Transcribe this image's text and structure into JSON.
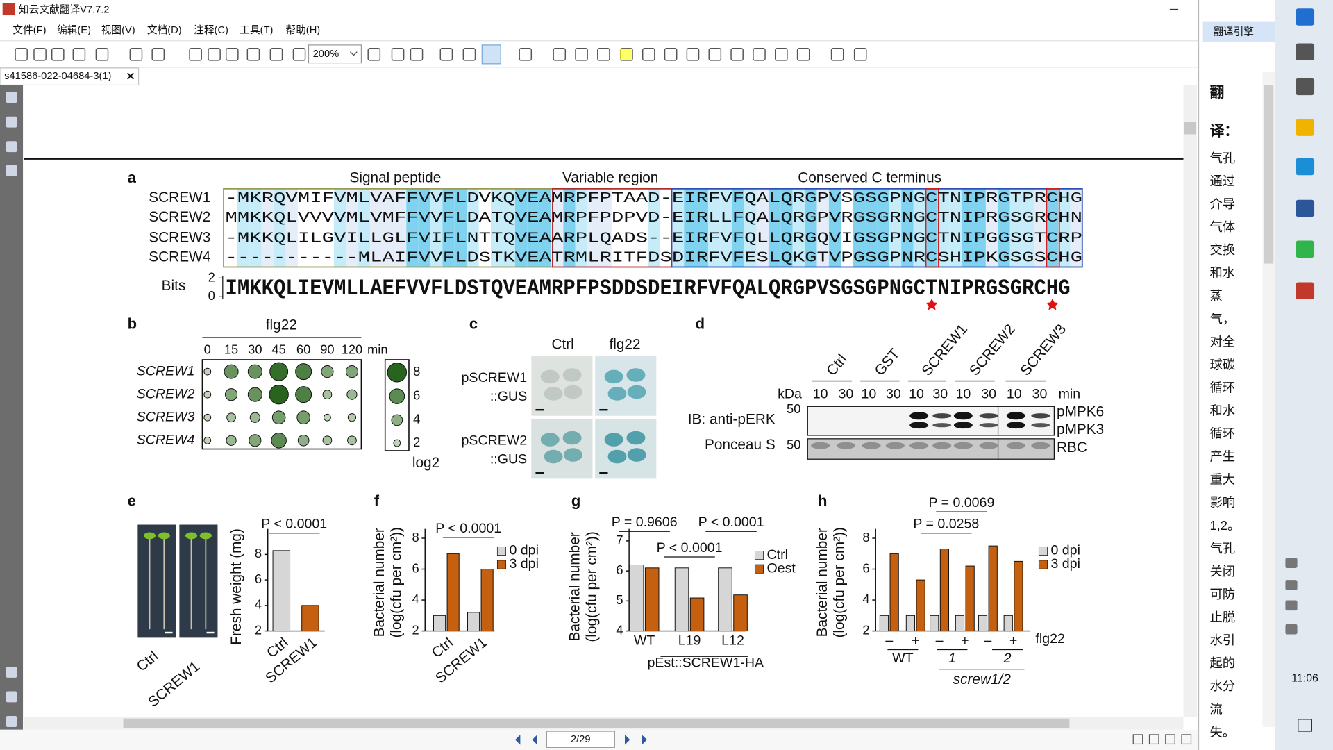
{
  "app": {
    "title": "知云文献翻译V7.7.2",
    "menu": [
      "文件(F)",
      "编辑(E)",
      "视图(V)",
      "文档(D)",
      "注释(C)",
      "工具(T)",
      "帮助(H)"
    ],
    "zoom": "200%",
    "tab": "s41586-022-04684-3(1)",
    "page": "2/29",
    "engine": "翻译引擎",
    "clock": "11:06"
  },
  "translation": {
    "heading": [
      "翻",
      "译："
    ],
    "lines": [
      "气孔",
      "通过",
      "介导",
      "气体",
      "交换",
      "和水",
      "蒸",
      "气，",
      "对全",
      "球碳",
      "循环",
      "和水",
      "循环",
      "产生",
      "重大",
      "影响",
      "1,2。",
      "气孔",
      "关闭",
      "可防",
      "止脱",
      "水引",
      "起的",
      "水分",
      "流",
      "失。"
    ]
  },
  "figure": {
    "a": {
      "label": "a",
      "regions": [
        "Signal peptide",
        "Variable region",
        "Conserved C terminus"
      ],
      "names": [
        "SCREW1",
        "SCREW2",
        "SCREW3",
        "SCREW4"
      ],
      "sequences": [
        "-MKRQVMIFVMLVAFFVVFLDVKQVEAMRPFPTAAD-EIRFVFQALQRGPVSGSGPNGCTNIPRGTPRCHG",
        "MMKKQLVVVVMLVMFFVVFLDATQVEAMRPFPDPVD-EIRLLFQALQRGPVRGSGRNGCTNIPRGSGRCHN",
        "-MKKQLILGVILLGLFVIFLNTTQVEAARPLQADS--EIRFVFQLLQRGQVIGSGPNGCTNIPGGSGTCRP",
        "-----------MLAIFVVFLDSTKVEATRMLRITFDSDIRFVFESLQKGTVPGSGPNRCSHIPKGSGSCHG"
      ],
      "logo": {
        "ylabel": "Bits",
        "yticks": [
          0,
          2
        ],
        "consensus": "IMKKQLIEVMLLAEFVVFLDSTQVEAMRPFPSDDSDEIRFVFQALQRGPVSGSGPNGCTNIPRGSGRCHG"
      }
    },
    "b": {
      "label": "b",
      "treatment": "flg22",
      "times": [
        0,
        15,
        30,
        45,
        60,
        90,
        120
      ],
      "time_unit": "min",
      "genes": [
        "SCREW1",
        "SCREW2",
        "SCREW3",
        "SCREW4"
      ],
      "values": [
        [
          2,
          5.5,
          5.5,
          7.5,
          6.5,
          4.5,
          4.5
        ],
        [
          2,
          4.5,
          5.5,
          8,
          6.5,
          3,
          3.5
        ],
        [
          2,
          3,
          3.5,
          5,
          5,
          2,
          2.5
        ],
        [
          2,
          3.5,
          4.5,
          6,
          4,
          3,
          3
        ]
      ],
      "legend_values": [
        8,
        6,
        4,
        2
      ],
      "legend_label": "log2"
    },
    "c": {
      "label": "c",
      "columns": [
        "Ctrl",
        "flg22"
      ],
      "rows": [
        [
          "pSCREW1",
          "::GUS"
        ],
        [
          "pSCREW2",
          "::GUS"
        ]
      ]
    },
    "d": {
      "label": "d",
      "lanes": [
        "Ctrl",
        "GST",
        "SCREW1",
        "SCREW2",
        "SCREW3"
      ],
      "unit": "kDa",
      "times": [
        10,
        30
      ],
      "time_unit": "min",
      "blots": [
        {
          "name": "IB: anti-pERK",
          "marker": "50",
          "bands": [
            "pMPK6",
            "pMPK3"
          ]
        },
        {
          "name": "Ponceau S",
          "marker": "50",
          "bands": [
            "RBC"
          ]
        }
      ]
    },
    "e": {
      "label": "e",
      "photos": [
        "Ctrl",
        "SCREW1"
      ]
    }
  },
  "chart_data": [
    {
      "type": "bar",
      "ylabel": "Fresh weight (mg)",
      "categories": [
        "Ctrl",
        "SCREW1"
      ],
      "values": [
        8.3,
        4.0
      ],
      "colors": [
        "#d6d6d6",
        "#c4600f"
      ],
      "ylim": [
        2,
        10
      ],
      "yticks": [
        2,
        4,
        6,
        8
      ],
      "annotations": [
        "P < 0.0001"
      ]
    },
    {
      "type": "bar",
      "label": "f",
      "ylabel": [
        "Bacterial number",
        "(log(cfu per cm²))"
      ],
      "categories": [
        "Ctrl",
        "SCREW1"
      ],
      "series": [
        {
          "name": "0 dpi",
          "color": "#d6d6d6",
          "values": [
            3.0,
            3.2
          ]
        },
        {
          "name": "3 dpi",
          "color": "#c4600f",
          "values": [
            7.0,
            6.0
          ]
        }
      ],
      "ylim": [
        2,
        8.6
      ],
      "yticks": [
        2,
        4,
        6,
        8
      ],
      "annotations": [
        "P < 0.0001"
      ]
    },
    {
      "type": "bar",
      "label": "g",
      "ylabel": [
        "Bacterial number",
        "(log(cfu per cm²))"
      ],
      "categories": [
        "WT",
        "L19",
        "L12"
      ],
      "series": [
        {
          "name": "Ctrl",
          "color": "#d6d6d6",
          "values": [
            6.2,
            6.1,
            6.1
          ]
        },
        {
          "name": "Oest",
          "color": "#c4600f",
          "values": [
            6.1,
            5.1,
            5.2
          ]
        }
      ],
      "ylim": [
        4,
        7.4
      ],
      "yticks": [
        4,
        5,
        6,
        7
      ],
      "xlabel": "pEst::SCREW1-HA",
      "annotations": [
        "P = 0.9606",
        "P < 0.0001",
        "P < 0.0001"
      ]
    },
    {
      "type": "bar",
      "label": "h",
      "ylabel": [
        "Bacterial number",
        "(log(cfu per cm²))"
      ],
      "categories": [
        "–",
        "+",
        "–",
        "+",
        "–",
        "+"
      ],
      "groups": [
        "WT",
        "1",
        "2"
      ],
      "group_title": "screw1/2",
      "xlabel": "flg22",
      "series": [
        {
          "name": "0 dpi",
          "color": "#d6d6d6",
          "values": [
            3.0,
            3.0,
            3.0,
            3.0,
            3.0,
            3.0
          ]
        },
        {
          "name": "3 dpi",
          "color": "#c4600f",
          "values": [
            7.0,
            5.3,
            7.3,
            6.2,
            7.5,
            6.5
          ]
        }
      ],
      "ylim": [
        2,
        8.6
      ],
      "yticks": [
        2,
        4,
        6,
        8
      ],
      "annotations": [
        "P = 0.0069",
        "P = 0.0258"
      ]
    }
  ]
}
